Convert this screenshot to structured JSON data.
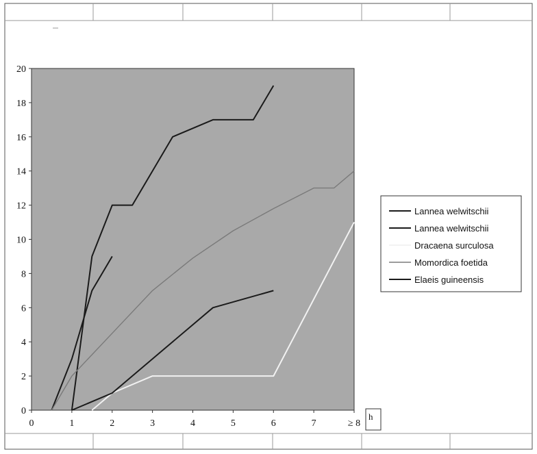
{
  "chart_data": {
    "type": "line",
    "title": "",
    "xlabel": "h",
    "ylabel": "",
    "x_ticks": [
      "0",
      "1",
      "2",
      "3",
      "4",
      "5",
      "6",
      "7",
      "≥ 8"
    ],
    "y_ticks": [
      "0",
      "2",
      "4",
      "6",
      "8",
      "10",
      "12",
      "14",
      "16",
      "18",
      "20"
    ],
    "xlim": [
      0,
      8
    ],
    "ylim": [
      0,
      20
    ],
    "grid": false,
    "legend_position": "right",
    "series": [
      {
        "name": "Lannea welwitschii",
        "color": "#1a1a1a",
        "points": [
          [
            0.5,
            0
          ],
          [
            1,
            3
          ],
          [
            1.5,
            7
          ],
          [
            2,
            9
          ]
        ]
      },
      {
        "name": "Lannea welwitschii",
        "color": "#1a1a1a",
        "points": [
          [
            1,
            0
          ],
          [
            1.5,
            9
          ],
          [
            2,
            12
          ],
          [
            2.5,
            12
          ],
          [
            3.5,
            16
          ],
          [
            4.5,
            17
          ],
          [
            5.5,
            17
          ],
          [
            6,
            19
          ]
        ]
      },
      {
        "name": "Dracaena surculosa",
        "color": "#f2f2f2",
        "points": [
          [
            1.5,
            0
          ],
          [
            2,
            1
          ],
          [
            3,
            2
          ],
          [
            6,
            2
          ],
          [
            8,
            11
          ]
        ]
      },
      {
        "name": "Momordica foetida",
        "color": "#7a7a7a",
        "points": [
          [
            0.5,
            0
          ],
          [
            1,
            2
          ],
          [
            2,
            4.5
          ],
          [
            3,
            7
          ],
          [
            4,
            8.9
          ],
          [
            5,
            10.5
          ],
          [
            6,
            11.8
          ],
          [
            7,
            13
          ],
          [
            7.5,
            13
          ],
          [
            8,
            14
          ]
        ]
      },
      {
        "name": "Elaeis guineensis",
        "color": "#1a1a1a",
        "points": [
          [
            1,
            0
          ],
          [
            2,
            1
          ],
          [
            3,
            3
          ],
          [
            4.5,
            6
          ],
          [
            6,
            7
          ]
        ]
      }
    ]
  }
}
